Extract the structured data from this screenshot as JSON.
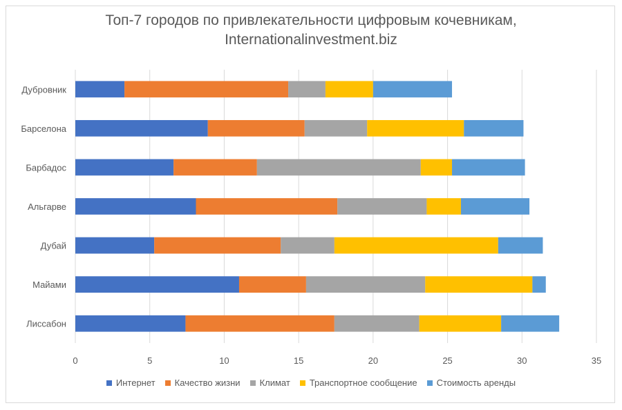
{
  "chart_data": {
    "type": "bar",
    "orientation": "horizontal",
    "stacked": true,
    "title": "Топ-7 городов по привлекательности цифровым кочевникам, Internationalinvestment.biz",
    "title_lines": [
      "Топ-7 городов по привлекательности цифровым кочевникам,",
      "Internationalinvestment.biz"
    ],
    "categories": [
      "Дубровник",
      "Барселона",
      "Барбадос",
      "Альгарве",
      "Дубай",
      "Майами",
      "Лиссабон"
    ],
    "series": [
      {
        "name": "Интернет",
        "color": "#4472c4",
        "values": [
          3.3,
          8.9,
          6.6,
          8.1,
          5.3,
          11.0,
          7.4
        ]
      },
      {
        "name": "Качество жизни",
        "color": "#ed7d31",
        "values": [
          11.0,
          6.5,
          5.6,
          9.5,
          8.5,
          4.5,
          10.0
        ]
      },
      {
        "name": "Климат",
        "color": "#a5a5a5",
        "values": [
          2.5,
          4.2,
          11.0,
          6.0,
          3.6,
          8.0,
          5.7
        ]
      },
      {
        "name": "Транспортное сообщение",
        "color": "#ffc000",
        "values": [
          3.2,
          6.5,
          2.1,
          2.3,
          11.0,
          7.2,
          5.5
        ]
      },
      {
        "name": "Стоимость аренды",
        "color": "#5b9bd5",
        "values": [
          5.3,
          4.0,
          4.9,
          4.6,
          3.0,
          0.9,
          3.9
        ]
      }
    ],
    "xlim": [
      0,
      35
    ],
    "xticks": [
      "0",
      "5",
      "10",
      "15",
      "20",
      "25",
      "30",
      "35"
    ],
    "grid": "vertical",
    "legend": "bottom",
    "xlabel": "",
    "ylabel": ""
  }
}
